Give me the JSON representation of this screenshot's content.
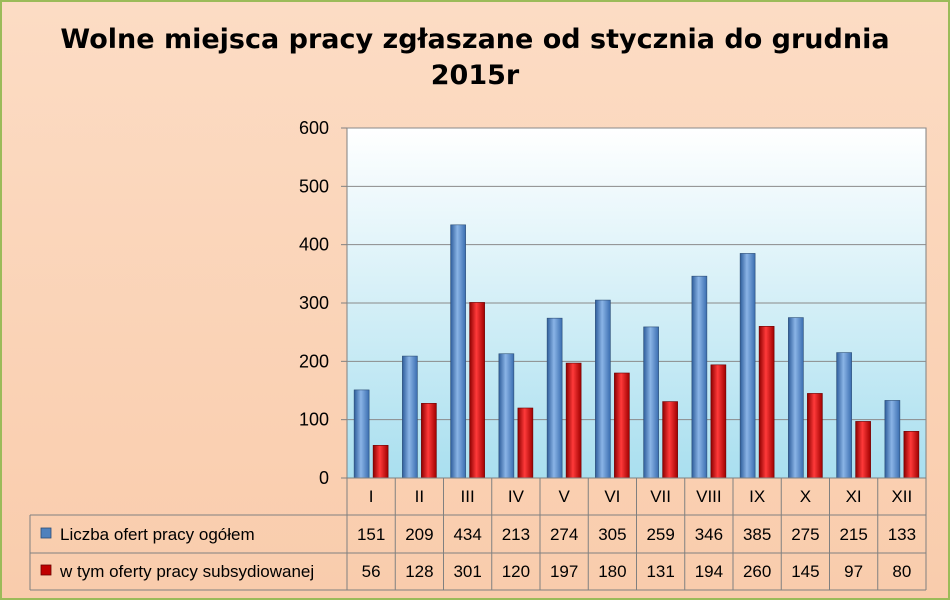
{
  "chart_data": {
    "type": "bar",
    "title": "Wolne miejsca pracy zgłaszane od stycznia do grudnia",
    "subtitle": "2015r",
    "categories": [
      "I",
      "II",
      "III",
      "IV",
      "V",
      "VI",
      "VII",
      "VIII",
      "IX",
      "X",
      "XI",
      "XII"
    ],
    "series": [
      {
        "name": "Liczba ofert pracy ogółem",
        "values": [
          151,
          209,
          434,
          213,
          274,
          305,
          259,
          346,
          385,
          275,
          215,
          133
        ],
        "color": "#4f81bd"
      },
      {
        "name": "w tym oferty pracy subsydiowanej",
        "values": [
          56,
          128,
          301,
          120,
          197,
          180,
          131,
          194,
          260,
          145,
          97,
          80
        ],
        "color": "#c00000"
      }
    ],
    "ylim": [
      0,
      600
    ],
    "yticks": [
      "0",
      "100",
      "200",
      "300",
      "400",
      "500",
      "600"
    ],
    "grid": true,
    "data_table": true,
    "legend": "data-table"
  }
}
